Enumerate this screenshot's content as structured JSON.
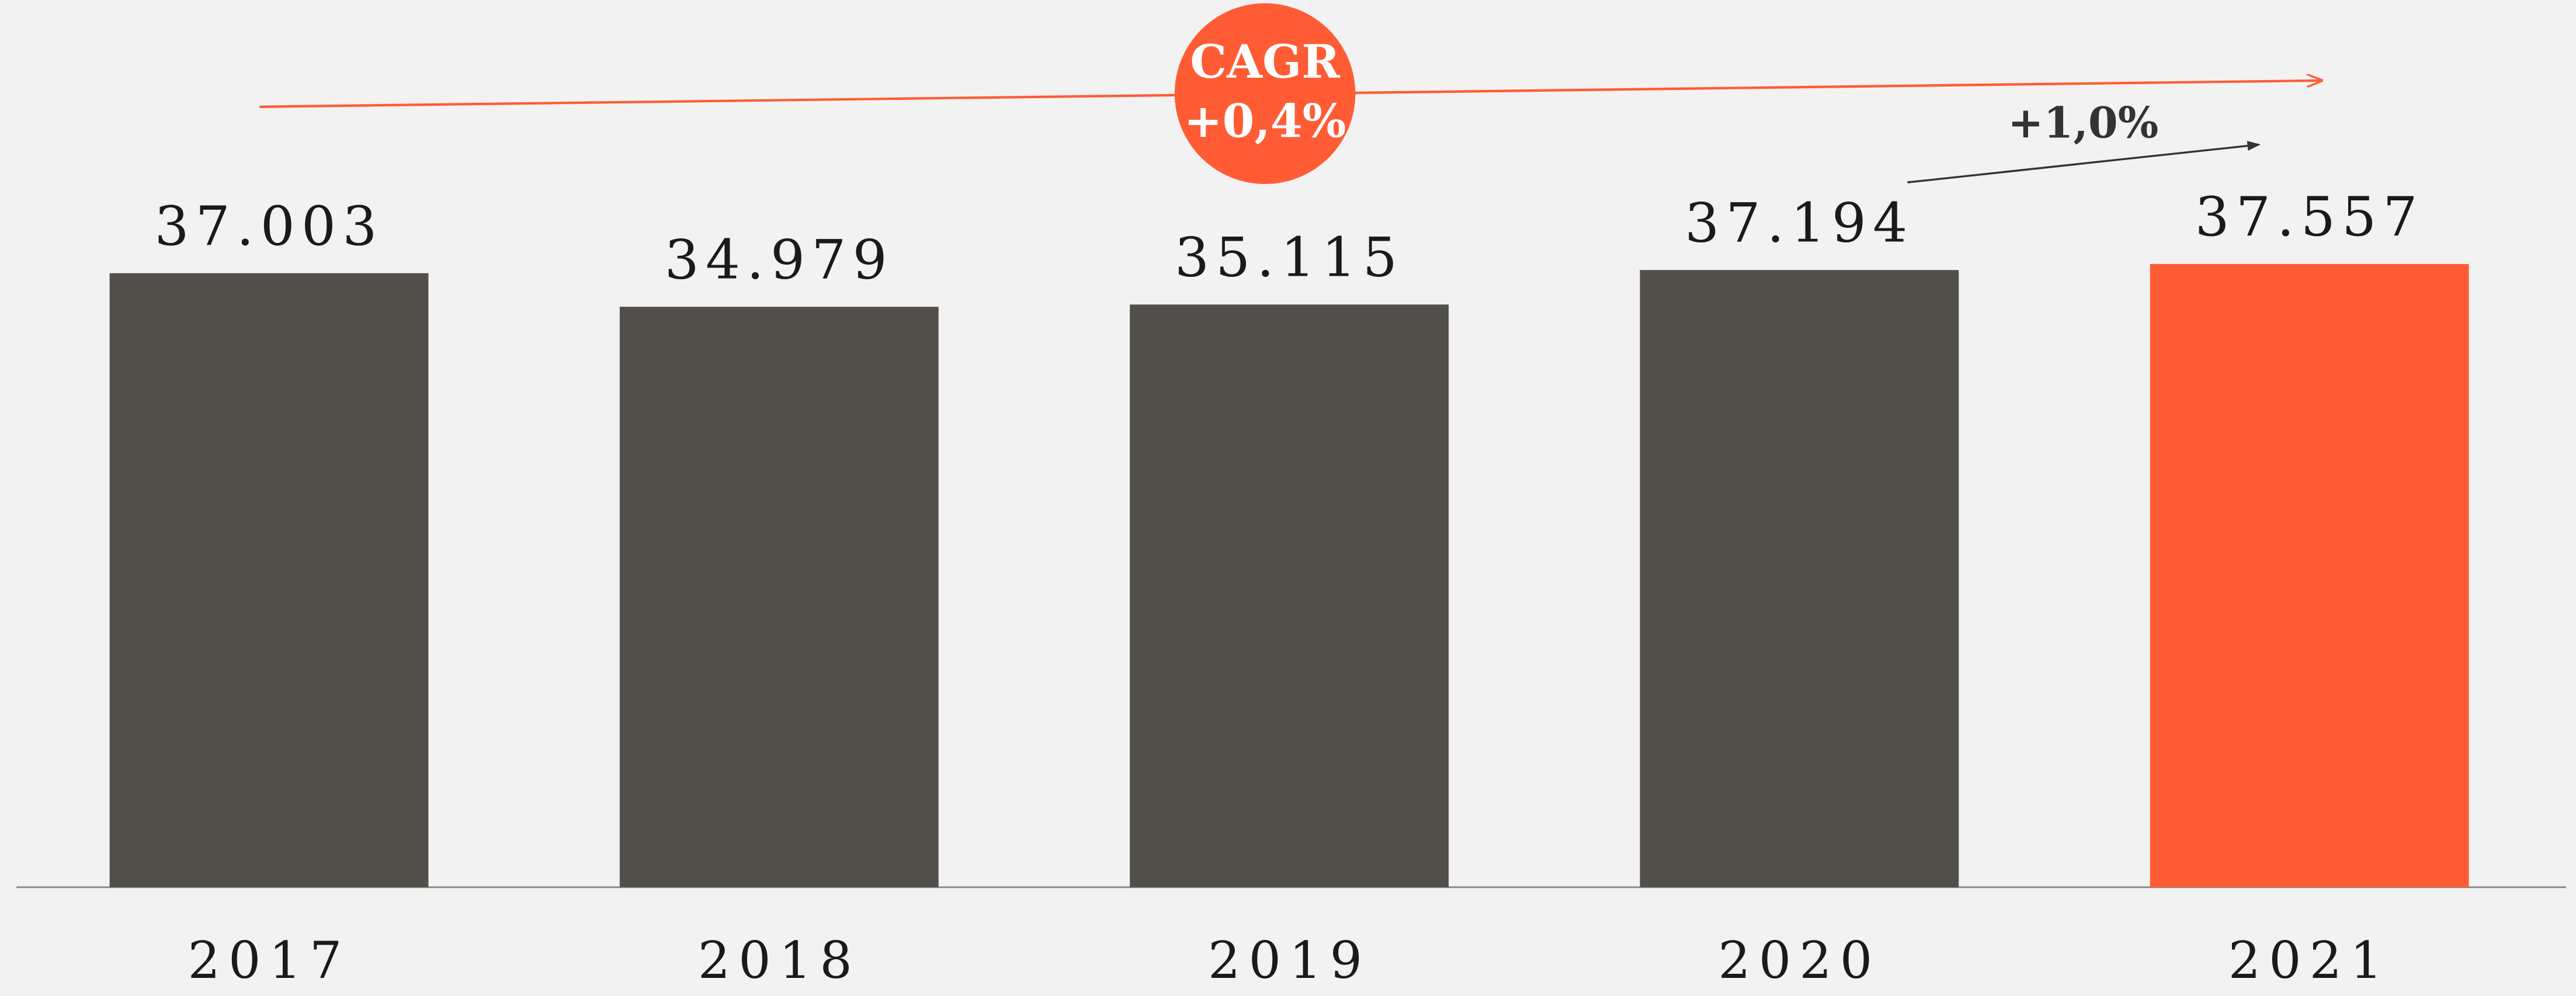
{
  "chart_data": {
    "type": "bar",
    "categories": [
      "2017",
      "2018",
      "2019",
      "2020",
      "2021"
    ],
    "values": [
      37003,
      34979,
      35115,
      37194,
      37557
    ],
    "value_labels": [
      "37.003",
      "34.979",
      "35.115",
      "37.194",
      "37.557"
    ],
    "colors": [
      "#524f4a",
      "#524f4a",
      "#524f4a",
      "#524f4a",
      "#ff5c35"
    ],
    "ylim": [
      0,
      40000
    ],
    "annotations": [
      "CAGR",
      "+0,4%",
      "+1,0%"
    ]
  }
}
